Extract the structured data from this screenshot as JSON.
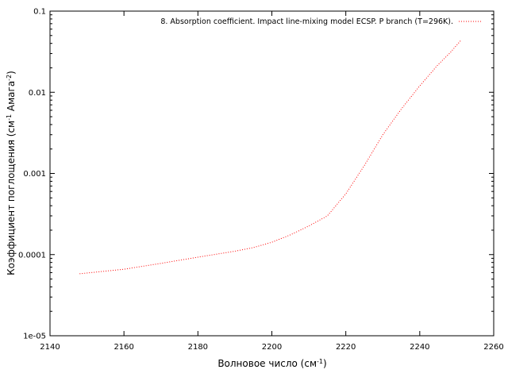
{
  "chart_data": {
    "type": "line",
    "scale": {
      "x": "linear",
      "y": "log"
    },
    "xlim": [
      2140,
      2260
    ],
    "ylim": [
      1e-05,
      0.1
    ],
    "x_ticks": [
      2140,
      2160,
      2180,
      2200,
      2220,
      2240,
      2260
    ],
    "y_ticks": [
      1e-05,
      0.0001,
      0.001,
      0.01,
      0.1
    ],
    "x_tick_labels": [
      "2140",
      "2160",
      "2180",
      "2200",
      "2220",
      "2240",
      "2260"
    ],
    "y_tick_labels": [
      "1e-05",
      "0.0001",
      "0.001",
      "0.01",
      "0.1"
    ],
    "xlabel": "Волновое число (см",
    "xlabel_sup": "-1",
    "xlabel_tail": ")",
    "ylabel": "Коэффициент поглощения (см",
    "ylabel_sup1": "-1",
    "ylabel_mid": " Амага",
    "ylabel_sup2": "-2",
    "ylabel_tail": ")",
    "legend_position": "top-right",
    "grid": false,
    "series": [
      {
        "name": "8. Absorption coefficient. Impact line-mixing model ECSP. P branch (T=296K).",
        "color": "#ff0000",
        "line_style": "dotted",
        "x": [
          2148,
          2160,
          2170,
          2180,
          2190,
          2195,
          2200,
          2205,
          2210,
          2215,
          2220,
          2225,
          2230,
          2235,
          2240,
          2245,
          2248,
          2251
        ],
        "y": [
          5.8e-05,
          6.6e-05,
          7.8e-05,
          9.3e-05,
          0.00011,
          0.000122,
          0.000142,
          0.000175,
          0.000225,
          0.0003,
          0.00056,
          0.00125,
          0.003,
          0.0062,
          0.012,
          0.022,
          0.03,
          0.043
        ]
      }
    ]
  }
}
